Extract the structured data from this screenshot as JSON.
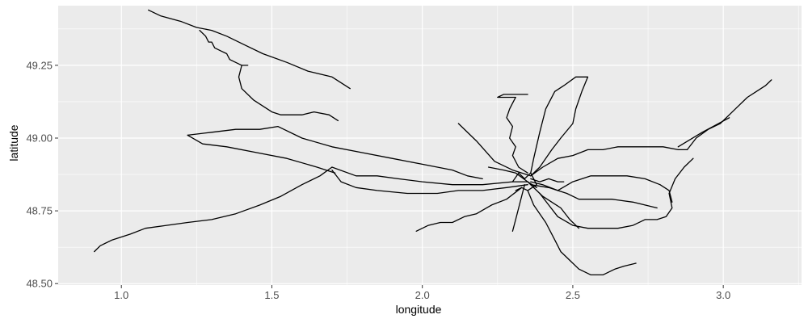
{
  "chart_data": {
    "type": "line",
    "title": "",
    "xlabel": "longitude",
    "ylabel": "latitude",
    "xlim": [
      0.79,
      3.26
    ],
    "ylim": [
      48.495,
      49.455
    ],
    "x_ticks": [
      1.0,
      1.5,
      2.0,
      2.5,
      3.0
    ],
    "x_tick_labels": [
      "1.0",
      "1.5",
      "2.0",
      "2.5",
      "3.0"
    ],
    "y_ticks": [
      48.5,
      48.75,
      49.0,
      49.25
    ],
    "y_tick_labels": [
      "48.50",
      "48.75",
      "49.00",
      "49.25"
    ],
    "grid": true,
    "legend": "none",
    "colors": {
      "panel": "#ebebeb",
      "grid": "#ffffff",
      "line": "#000000",
      "tick": "#333333"
    },
    "series": [
      {
        "x": [
          1.09,
          1.13,
          1.2,
          1.25,
          1.3,
          1.35,
          1.41,
          1.47,
          1.55,
          1.62,
          1.7,
          1.76
        ],
        "y": [
          49.44,
          49.42,
          49.4,
          49.38,
          49.37,
          49.35,
          49.32,
          49.29,
          49.26,
          49.23,
          49.21,
          49.17
        ]
      },
      {
        "x": [
          1.26,
          1.28,
          1.29,
          1.3,
          1.31,
          1.33,
          1.35,
          1.36,
          1.4,
          1.42
        ],
        "y": [
          49.37,
          49.35,
          49.33,
          49.33,
          49.31,
          49.3,
          49.29,
          49.27,
          49.25,
          49.25
        ]
      },
      {
        "x": [
          1.4,
          1.39,
          1.4,
          1.44,
          1.47,
          1.5,
          1.53,
          1.57,
          1.6,
          1.64,
          1.69,
          1.72
        ],
        "y": [
          49.25,
          49.21,
          49.17,
          49.13,
          49.11,
          49.09,
          49.08,
          49.08,
          49.08,
          49.09,
          49.08,
          49.06
        ]
      },
      {
        "x": [
          0.91,
          0.93,
          0.97,
          1.03,
          1.08,
          1.15,
          1.22,
          1.3,
          1.38,
          1.46,
          1.53,
          1.6,
          1.66,
          1.7
        ],
        "y": [
          48.61,
          48.63,
          48.65,
          48.67,
          48.69,
          48.7,
          48.71,
          48.72,
          48.74,
          48.77,
          48.8,
          48.84,
          48.87,
          48.9
        ]
      },
      {
        "x": [
          1.22,
          1.3,
          1.38,
          1.46,
          1.52,
          1.6,
          1.7,
          1.8,
          1.9,
          2.0,
          2.1,
          2.15,
          2.2
        ],
        "y": [
          49.01,
          49.02,
          49.03,
          49.03,
          49.04,
          49.0,
          48.97,
          48.95,
          48.93,
          48.91,
          48.89,
          48.87,
          48.86
        ]
      },
      {
        "x": [
          1.22,
          1.27,
          1.35,
          1.45,
          1.55,
          1.65,
          1.71
        ],
        "y": [
          49.01,
          48.98,
          48.97,
          48.95,
          48.93,
          48.9,
          48.88
        ]
      },
      {
        "x": [
          1.7,
          1.73,
          1.78,
          1.85,
          1.95,
          2.05,
          2.12,
          2.2,
          2.28,
          2.35
        ],
        "y": [
          48.89,
          48.85,
          48.83,
          48.82,
          48.81,
          48.81,
          48.82,
          48.82,
          48.83,
          48.84
        ]
      },
      {
        "x": [
          1.7,
          1.78,
          1.85,
          1.92,
          2.0,
          2.1,
          2.2,
          2.3,
          2.35
        ],
        "y": [
          48.9,
          48.87,
          48.87,
          48.86,
          48.85,
          48.84,
          48.84,
          48.85,
          48.85
        ]
      },
      {
        "x": [
          2.12,
          2.18,
          2.24,
          2.3,
          2.36
        ],
        "y": [
          49.05,
          48.99,
          48.92,
          48.89,
          48.87
        ]
      },
      {
        "x": [
          2.35,
          2.32,
          2.3,
          2.31,
          2.29,
          2.3,
          2.28,
          2.29,
          2.3,
          2.31,
          2.29,
          2.27,
          2.25,
          2.27,
          2.3,
          2.33,
          2.35
        ],
        "y": [
          48.88,
          48.9,
          48.94,
          48.97,
          49.0,
          49.04,
          49.07,
          49.1,
          49.12,
          49.14,
          49.14,
          49.14,
          49.14,
          49.15,
          49.15,
          49.15,
          49.15
        ]
      },
      {
        "x": [
          2.36,
          2.37,
          2.39,
          2.41,
          2.44,
          2.47,
          2.51,
          2.55,
          2.53,
          2.51,
          2.5,
          2.46,
          2.43,
          2.41,
          2.39,
          2.36
        ],
        "y": [
          48.88,
          48.93,
          49.02,
          49.1,
          49.16,
          49.18,
          49.21,
          49.21,
          49.16,
          49.1,
          49.05,
          49.0,
          48.96,
          48.93,
          48.9,
          48.87
        ]
      },
      {
        "x": [
          2.36,
          2.4,
          2.45,
          2.5,
          2.55,
          2.6,
          2.65,
          2.7,
          2.75,
          2.8,
          2.85,
          2.88
        ],
        "y": [
          48.87,
          48.9,
          48.93,
          48.94,
          48.96,
          48.96,
          48.97,
          48.97,
          48.97,
          48.97,
          48.96,
          48.96
        ]
      },
      {
        "x": [
          2.88,
          2.91,
          2.95,
          2.99,
          3.02,
          3.05,
          3.08,
          3.11,
          3.14,
          3.16
        ],
        "y": [
          48.96,
          49.0,
          49.03,
          49.05,
          49.08,
          49.11,
          49.14,
          49.16,
          49.18,
          49.2
        ]
      },
      {
        "x": [
          2.85,
          2.93,
          3.02
        ],
        "y": [
          48.97,
          49.02,
          49.07
        ]
      },
      {
        "x": [
          2.9,
          2.87,
          2.84,
          2.82,
          2.83,
          2.81,
          2.78,
          2.74,
          2.7,
          2.65,
          2.6,
          2.55,
          2.5,
          2.45,
          2.42,
          2.39
        ],
        "y": [
          48.93,
          48.9,
          48.86,
          48.81,
          48.76,
          48.73,
          48.72,
          48.72,
          48.7,
          48.69,
          48.69,
          48.69,
          48.7,
          48.73,
          48.77,
          48.81
        ]
      },
      {
        "x": [
          2.36,
          2.4,
          2.45,
          2.5,
          2.56,
          2.62,
          2.68,
          2.74,
          2.79,
          2.82,
          2.83
        ],
        "y": [
          48.85,
          48.84,
          48.82,
          48.85,
          48.87,
          48.87,
          48.87,
          48.86,
          48.84,
          48.82,
          48.78
        ]
      },
      {
        "x": [
          2.36,
          2.42,
          2.48,
          2.52,
          2.58,
          2.63,
          2.7,
          2.78
        ],
        "y": [
          48.84,
          48.83,
          48.81,
          48.79,
          48.79,
          48.79,
          48.78,
          48.76
        ]
      },
      {
        "x": [
          2.35,
          2.37,
          2.41,
          2.44,
          2.46,
          2.49,
          2.52,
          2.56,
          2.6,
          2.64,
          2.67,
          2.71
        ],
        "y": [
          48.82,
          48.77,
          48.71,
          48.65,
          48.61,
          48.58,
          48.55,
          48.53,
          48.53,
          48.55,
          48.56,
          48.57
        ]
      },
      {
        "x": [
          2.33,
          2.28,
          2.23,
          2.18,
          2.14,
          2.1,
          2.06,
          2.02,
          1.98
        ],
        "y": [
          48.83,
          48.79,
          48.77,
          48.74,
          48.73,
          48.71,
          48.71,
          48.7,
          48.68
        ]
      },
      {
        "x": [
          2.34,
          2.33,
          2.32,
          2.31,
          2.3
        ],
        "y": [
          48.84,
          48.8,
          48.76,
          48.72,
          48.68
        ]
      },
      {
        "x": [
          2.35,
          2.38,
          2.4,
          2.43,
          2.46,
          2.49,
          2.52
        ],
        "y": [
          48.85,
          48.82,
          48.8,
          48.78,
          48.76,
          48.72,
          48.69
        ]
      },
      {
        "x": [
          2.36,
          2.39,
          2.42,
          2.45,
          2.47
        ],
        "y": [
          48.86,
          48.85,
          48.86,
          48.85,
          48.85
        ]
      },
      {
        "x": [
          2.22,
          2.27,
          2.31,
          2.35,
          2.38
        ],
        "y": [
          48.9,
          48.89,
          48.88,
          48.85,
          48.83
        ]
      },
      {
        "x": [
          2.3,
          2.32,
          2.34,
          2.36,
          2.38,
          2.35,
          2.33,
          2.31
        ],
        "y": [
          48.85,
          48.88,
          48.86,
          48.88,
          48.84,
          48.82,
          48.83,
          48.82
        ]
      }
    ]
  }
}
